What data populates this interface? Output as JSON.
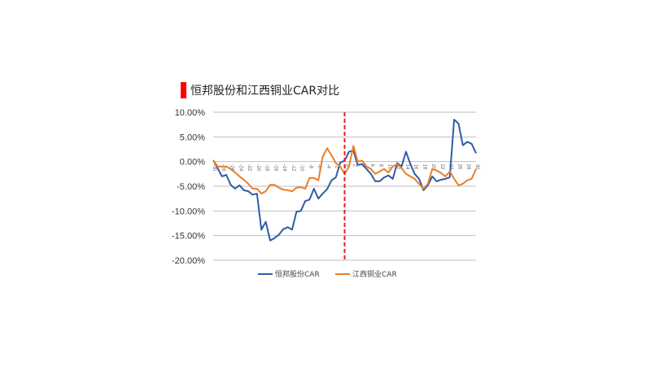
{
  "title": "恒邦股份和江西铜业CAR对比",
  "colors": {
    "accent_bar": "#ff0000",
    "series1": "#2e5ca8",
    "series2": "#e87f2a",
    "event_line": "#e81c1c",
    "grid": "#bfbfbf"
  },
  "chart_data": {
    "type": "line",
    "title": "恒邦股份和江西铜业CAR对比",
    "xlabel": "",
    "ylabel": "",
    "ylim": [
      -0.2,
      0.1
    ],
    "y_ticks": [
      0.1,
      0.05,
      0.0,
      -0.05,
      -0.1,
      -0.15,
      -0.2
    ],
    "y_tick_labels": [
      "10.00%",
      "5.00%",
      "0.00%",
      "-5.00%",
      "-10.00%",
      "-15.00%",
      "-20.00%"
    ],
    "x": [
      -30,
      -29,
      -28,
      -27,
      -26,
      -25,
      -24,
      -23,
      -22,
      -21,
      -20,
      -19,
      -18,
      -17,
      -16,
      -15,
      -14,
      -13,
      -12,
      -11,
      -10,
      -9,
      -8,
      -7,
      -6,
      -5,
      -4,
      -3,
      -2,
      -1,
      0,
      1,
      2,
      3,
      4,
      5,
      6,
      7,
      8,
      9,
      10,
      11,
      12,
      13,
      14,
      15,
      16,
      17,
      18,
      19,
      20,
      21,
      22,
      23,
      24,
      25,
      26,
      27,
      28,
      29,
      30
    ],
    "x_tick_labels": [
      "-30",
      "-28",
      "-26",
      "-24",
      "-22",
      "-20",
      "-18",
      "-16",
      "-14",
      "-12",
      "-10",
      "-8",
      "-6",
      "-4",
      "-2",
      "0",
      "2",
      "4",
      "6",
      "8",
      "10",
      "12",
      "14",
      "16",
      "18",
      "20",
      "22",
      "24",
      "26",
      "28",
      "30"
    ],
    "event_x": 0,
    "grid": true,
    "legend_position": "bottom",
    "series": [
      {
        "name": "恒邦股份CAR",
        "color": "#2e5ca8",
        "values": [
          0.003,
          -0.013,
          -0.03,
          -0.027,
          -0.047,
          -0.055,
          -0.048,
          -0.058,
          -0.06,
          -0.067,
          -0.065,
          -0.138,
          -0.122,
          -0.16,
          -0.155,
          -0.148,
          -0.137,
          -0.133,
          -0.138,
          -0.102,
          -0.1,
          -0.08,
          -0.077,
          -0.055,
          -0.075,
          -0.065,
          -0.056,
          -0.038,
          -0.032,
          -0.002,
          0.002,
          0.02,
          0.022,
          -0.007,
          -0.005,
          -0.015,
          -0.025,
          -0.04,
          -0.04,
          -0.032,
          -0.028,
          -0.035,
          -0.003,
          -0.01,
          0.02,
          -0.005,
          -0.025,
          -0.035,
          -0.058,
          -0.048,
          -0.03,
          -0.04,
          -0.037,
          -0.035,
          -0.032,
          0.085,
          0.077,
          0.033,
          0.04,
          0.036,
          0.017
        ]
      },
      {
        "name": "江西铜业CAR",
        "color": "#e87f2a",
        "values": [
          0.003,
          -0.01,
          -0.01,
          -0.01,
          -0.015,
          -0.022,
          -0.03,
          -0.037,
          -0.045,
          -0.055,
          -0.055,
          -0.065,
          -0.06,
          -0.047,
          -0.047,
          -0.053,
          -0.057,
          -0.058,
          -0.06,
          -0.053,
          -0.052,
          -0.055,
          -0.033,
          -0.033,
          -0.038,
          0.01,
          0.027,
          0.013,
          -0.003,
          -0.01,
          -0.025,
          -0.01,
          0.032,
          0.0,
          0.002,
          -0.01,
          -0.015,
          -0.025,
          -0.02,
          -0.015,
          -0.022,
          -0.01,
          -0.005,
          -0.013,
          -0.025,
          -0.03,
          -0.035,
          -0.045,
          -0.055,
          -0.045,
          -0.015,
          -0.018,
          -0.023,
          -0.03,
          -0.02,
          -0.035,
          -0.048,
          -0.045,
          -0.038,
          -0.035,
          -0.015
        ]
      }
    ]
  }
}
